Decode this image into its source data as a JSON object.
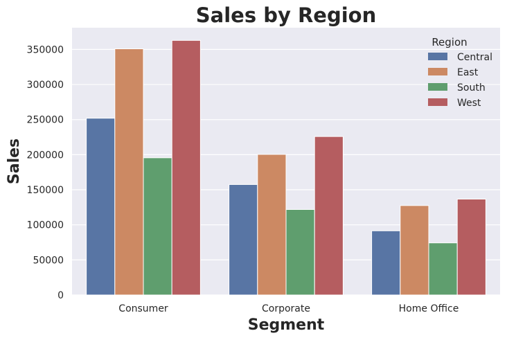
{
  "chart_data": {
    "type": "bar",
    "title": "Sales by Region",
    "xlabel": "Segment",
    "ylabel": "Sales",
    "categories": [
      "Consumer",
      "Corporate",
      "Home Office"
    ],
    "series": [
      {
        "name": "Central",
        "color": "#5875a4",
        "values": [
          252000,
          157500,
          91500
        ]
      },
      {
        "name": "East",
        "color": "#cc8963",
        "values": [
          350900,
          200400,
          127500
        ]
      },
      {
        "name": "South",
        "color": "#5f9e6e",
        "values": [
          195600,
          121900,
          74300
        ]
      },
      {
        "name": "West",
        "color": "#b55d60",
        "values": [
          362900,
          225900,
          136700
        ]
      }
    ],
    "ylim": [
      0,
      381000
    ],
    "yticks": [
      0,
      50000,
      100000,
      150000,
      200000,
      250000,
      300000,
      350000
    ],
    "legend": {
      "title": "Region",
      "placement": "top-right"
    },
    "grid": true,
    "background": "#eaeaf2"
  }
}
